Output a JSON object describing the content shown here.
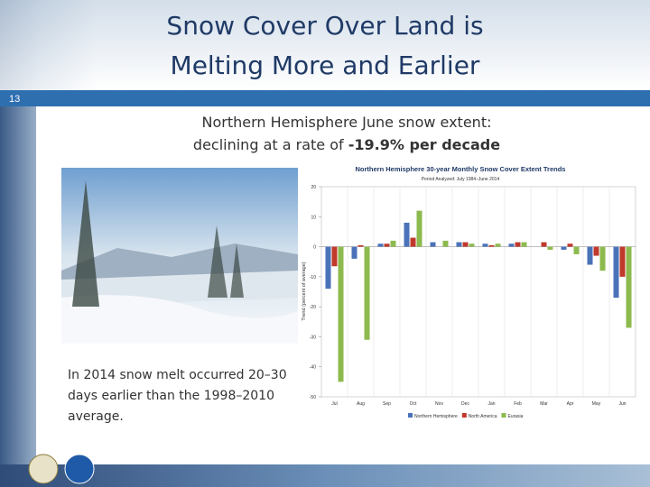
{
  "slide": {
    "title_lines": [
      "Snow Cover Over Land is",
      "Melting More and Earlier"
    ],
    "slide_number": "13",
    "subtitle_line1": "Northern  Hemisphere June snow extent:",
    "subtitle_line2": "declining at a rate of ",
    "subtitle_emphasis": "-19.9% per decade",
    "caption_lines": [
      "In 2014 snow melt occurred 20–30",
      "days earlier than the 1998–2010",
      "average."
    ]
  },
  "chart_data": {
    "type": "bar",
    "title": "Northern Hemisphere 30-year Monthly Snow Cover Extent Trends",
    "subtitle": "Period Analyzed: July 1984–June 2014",
    "y_label": "Trend (percent of average)",
    "categories": [
      "Jul",
      "Aug",
      "Sep",
      "Oct",
      "Nov",
      "Dec",
      "Jan",
      "Feb",
      "Mar",
      "Apr",
      "May",
      "Jun"
    ],
    "series": [
      {
        "name": "Northern Hemisphere",
        "color": "#4a72b8",
        "values": [
          -14,
          -4,
          1,
          8,
          1.5,
          1.5,
          1,
          1,
          0,
          -1,
          -6,
          -17
        ]
      },
      {
        "name": "North America",
        "color": "#c0392b",
        "values": [
          -6.5,
          0.5,
          1,
          3,
          0,
          1.5,
          0.5,
          1.5,
          1.5,
          1,
          -3,
          -10
        ]
      },
      {
        "name": "Eurasia",
        "color": "#8dba4e",
        "values": [
          -45,
          -31,
          2,
          12,
          2,
          1,
          1,
          1.5,
          -1,
          -2.5,
          -8,
          -27
        ]
      }
    ],
    "ylim": [
      -50,
      20
    ],
    "yticks": [
      -50,
      -40,
      -30,
      -20,
      -10,
      0,
      10,
      20
    ],
    "legend": "bottom"
  }
}
